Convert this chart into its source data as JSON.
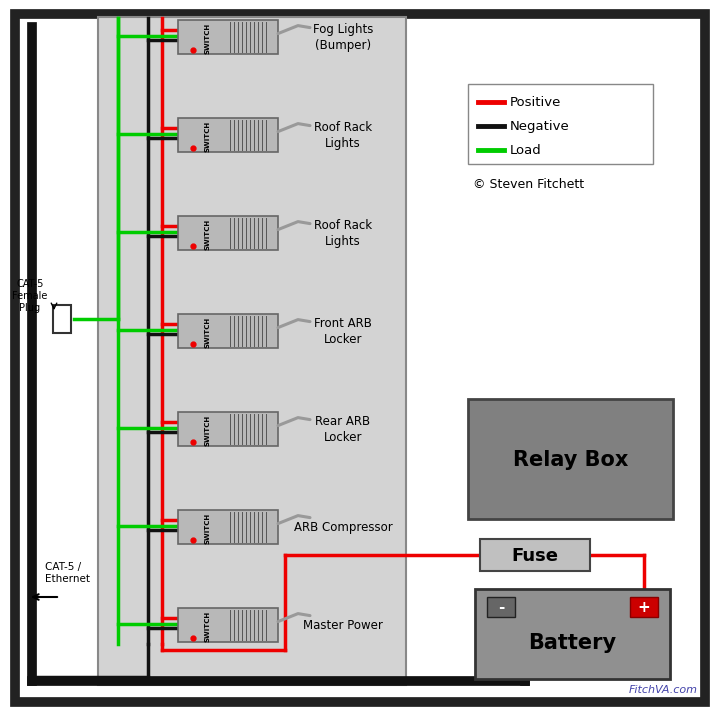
{
  "bg_color": "#ffffff",
  "panel_bg": "#d3d3d3",
  "panel_border": "#888888",
  "switch_labels": [
    "Fog Lights\n(Bumper)",
    "Roof Rack\nLights",
    "Roof Rack\nLights",
    "Front ARB\nLocker",
    "Rear ARB\nLocker",
    "ARB Compressor",
    "Master Power"
  ],
  "legend_items": [
    {
      "label": "Positive",
      "color": "#ee0000"
    },
    {
      "label": "Negative",
      "color": "#111111"
    },
    {
      "label": "Load",
      "color": "#00cc00"
    }
  ],
  "copyright": "© Steven Fitchett",
  "watermark": "FitchVA.com",
  "relay_box_label": "Relay Box",
  "fuse_label": "Fuse",
  "battery_label": "Battery",
  "cat5_female_label": "CAT-5\nFemale\nPlug",
  "cat5_ethernet_label": "CAT-5 /\nEthernet",
  "positive_color": "#ee0000",
  "negative_color": "#111111",
  "load_color": "#00cc00",
  "relay_box_color": "#808080",
  "fuse_color": "#c0c0c0",
  "battery_color": "#909090",
  "outer_border_color": "#222222",
  "switch_face_color": "#b8b8b8",
  "switch_dark_color": "#888888"
}
